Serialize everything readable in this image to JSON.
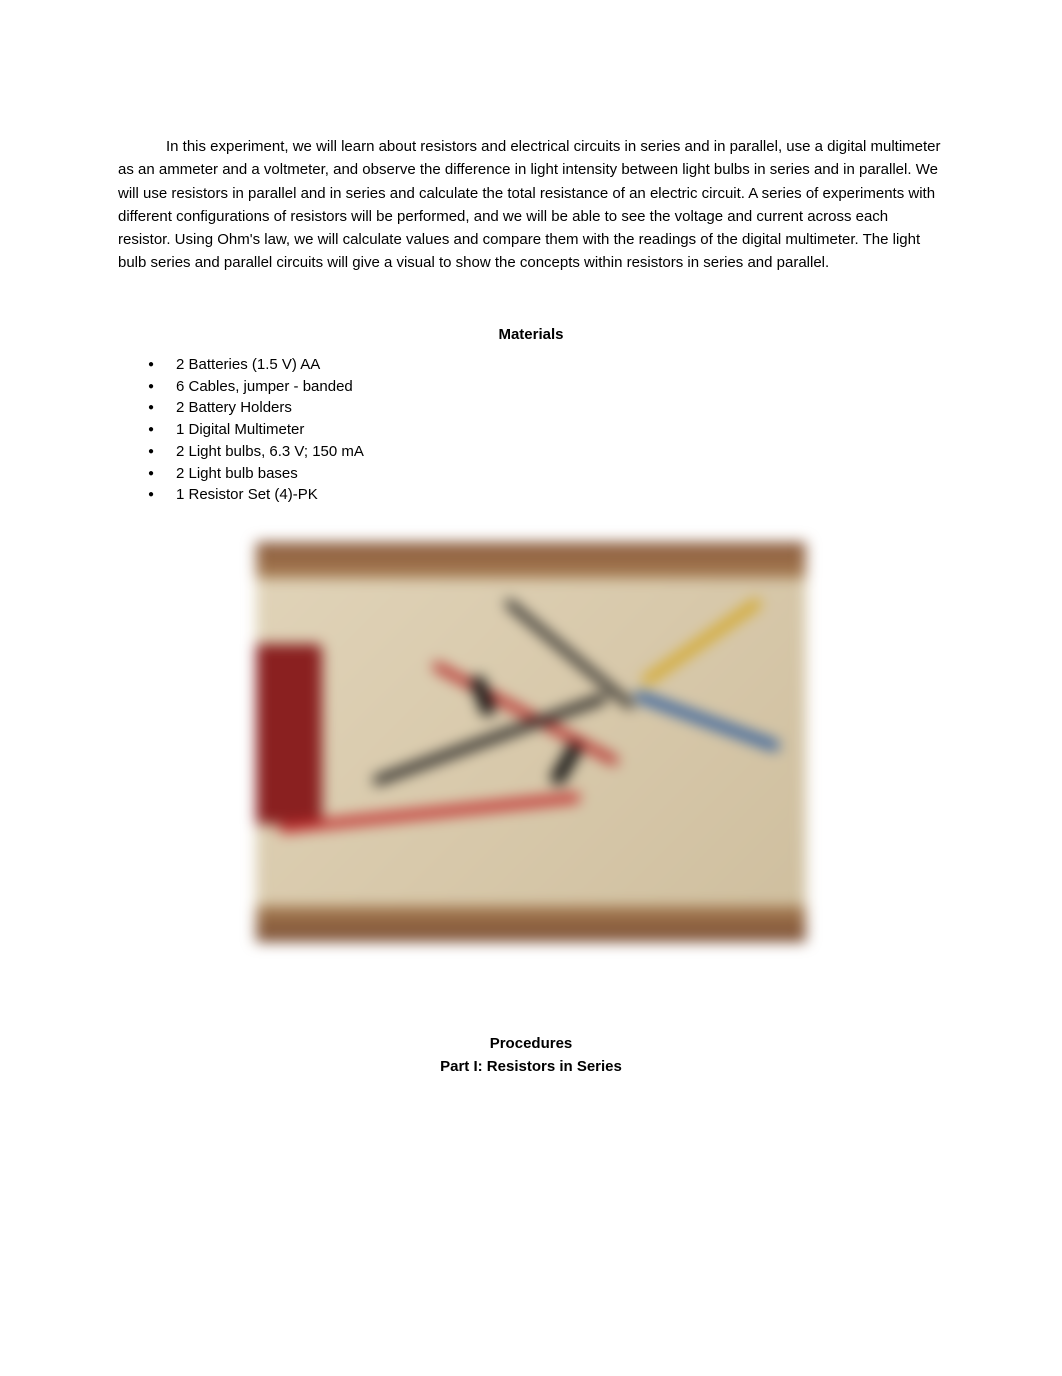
{
  "introduction": {
    "text": "In this experiment, we will learn about resistors and electrical circuits in series and in parallel, use a digital multimeter as an ammeter and a voltmeter, and observe the difference in light intensity between light bulbs in series and in parallel. We will use resistors in parallel and in series and calculate the total resistance of an electric circuit. A series of experiments with different configurations of resistors will be performed, and we will be able to see the voltage and current across each resistor. Using Ohm's law, we will calculate values and compare them with the readings of the digital multimeter. The light bulb series and parallel circuits will give a visual to show the concepts within resistors in series and parallel."
  },
  "materials": {
    "heading": "Materials",
    "items": [
      "2 Batteries (1.5 V) AA",
      "6 Cables, jumper - banded",
      "2 Battery Holders",
      "1 Digital Multimeter",
      "2 Light bulbs, 6.3 V; 150 mA",
      "2 Light bulb bases",
      "1 Resistor Set (4)-PK"
    ]
  },
  "figure": {
    "description": "blurred-experiment-photo",
    "colors": {
      "background": "#d4c5a8",
      "band": "#8a5a3c",
      "red_wire": "#c23030",
      "black_wire": "#1a1a1a",
      "yellow_wire": "#d4a828",
      "blue_wire": "#2a5a9c",
      "meter": "#8a2020"
    }
  },
  "procedures": {
    "heading": "Procedures",
    "part_heading": "Part I: Resistors in Series"
  },
  "typography": {
    "body_fontsize_pt": 11,
    "heading_weight": "bold",
    "font_family": "Arial",
    "text_color": "#000000",
    "page_bg": "#ffffff"
  }
}
